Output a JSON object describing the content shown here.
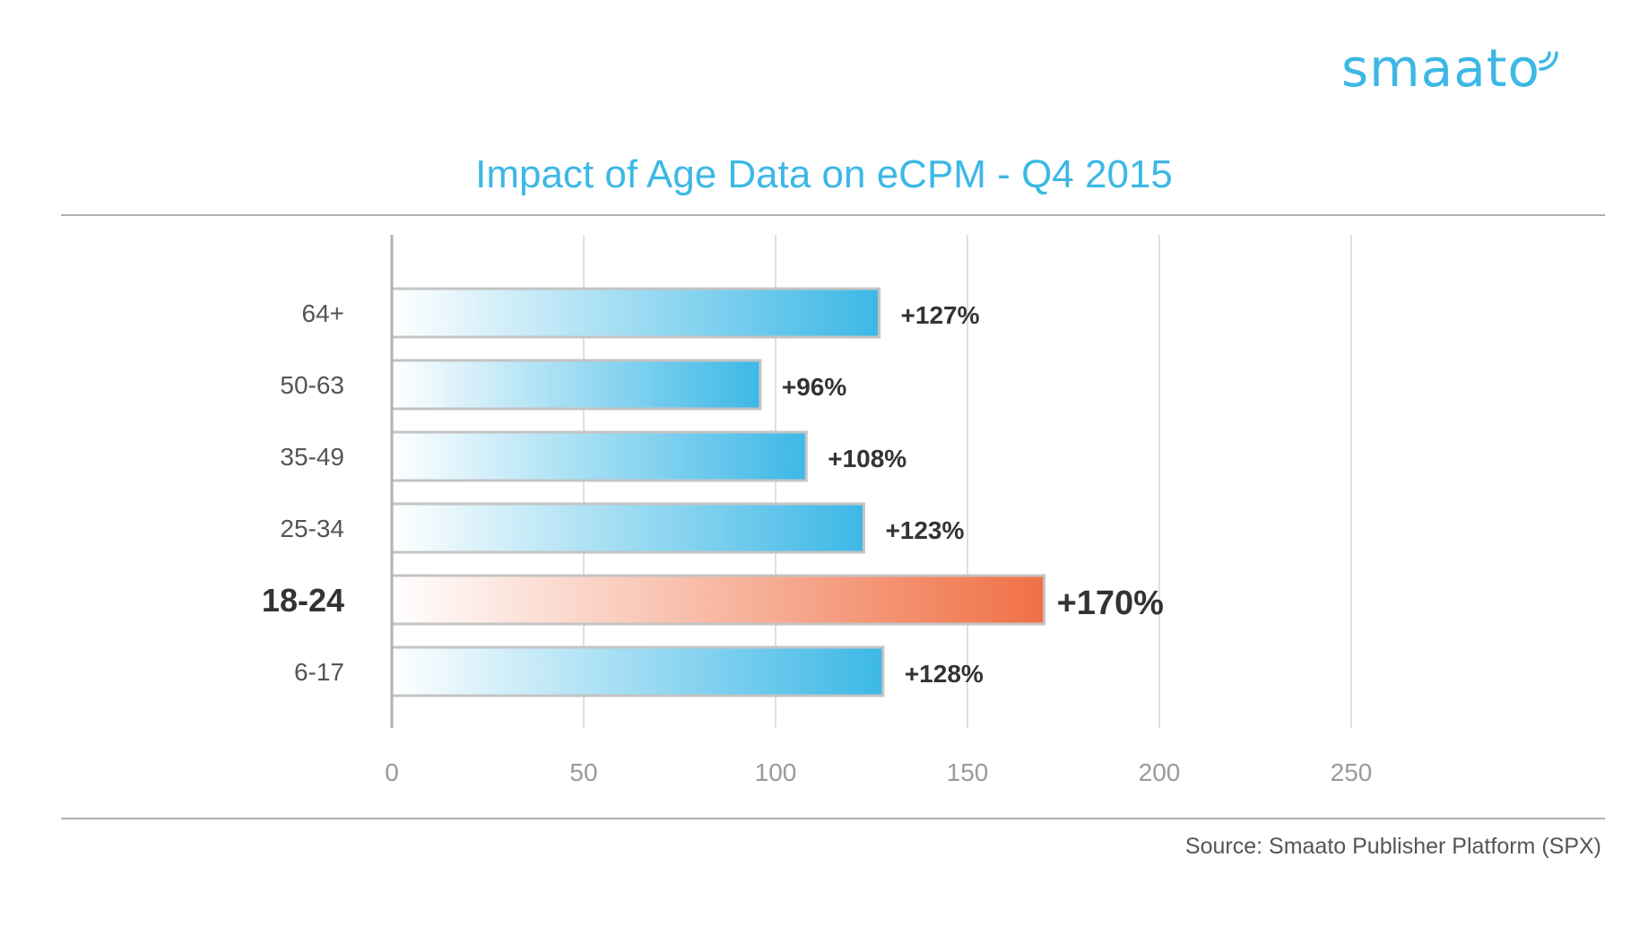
{
  "brand": {
    "name": "smaato",
    "color": "#3cb8e6"
  },
  "source": "Source: Smaato Publisher Platform (SPX)",
  "chart_data": {
    "type": "bar",
    "orientation": "horizontal",
    "title": "Impact of Age Data on eCPM - Q4 2015",
    "xlabel": "",
    "ylabel": "",
    "categories": [
      "64+",
      "50-63",
      "35-49",
      "25-34",
      "18-24",
      "6-17"
    ],
    "values": [
      127,
      96,
      108,
      123,
      170,
      128
    ],
    "data_labels": [
      "+127%",
      "+96%",
      "+108%",
      "+123%",
      "+170%",
      "+128%"
    ],
    "highlight_category": "18-24",
    "xlim": [
      0,
      250
    ],
    "xticks": [
      0,
      50,
      100,
      150,
      200,
      250
    ],
    "grid": true,
    "colors": {
      "bar": "#3cb8e6",
      "bar_highlight": "#f07045",
      "grid": "#e0e0e0",
      "axis": "#b0b0b0",
      "text": "#555555",
      "text_strong": "#333333"
    }
  }
}
